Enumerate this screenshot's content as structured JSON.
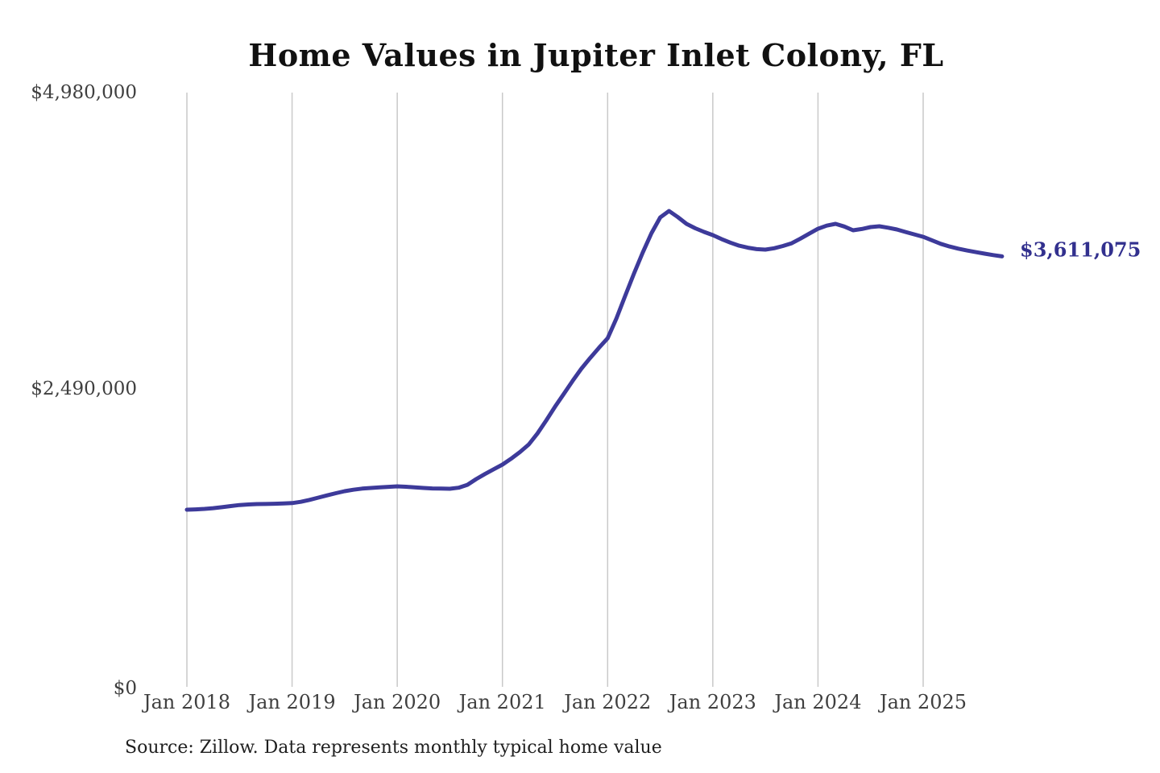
{
  "title": "Home Values in Jupiter Inlet Colony, FL",
  "end_value_label": "$3,611,075",
  "source_note": "Source: Zillow. Data represents monthly typical home value",
  "y_axis": {
    "ticks": [
      "$4,980,000",
      "$2,490,000",
      "$0"
    ]
  },
  "x_axis": {
    "ticks": [
      "Jan 2018",
      "Jan 2019",
      "Jan 2020",
      "Jan 2021",
      "Jan 2022",
      "Jan 2023",
      "Jan 2024",
      "Jan 2025"
    ]
  },
  "colors": {
    "line": "#3d3a9a",
    "end_label": "#32308e",
    "gridline": "#c9c9c9",
    "axis_text": "#3f3f3f",
    "title_text": "#111111",
    "source_text": "#1f1f1f",
    "background": "#ffffff"
  },
  "chart_data": {
    "type": "line",
    "title": "Home Values in Jupiter Inlet Colony, FL",
    "series_name": "Monthly typical home value",
    "unit": "USD",
    "frequency": "monthly",
    "start_month": "2018-01",
    "end_month": "2025-10",
    "ylim": [
      0,
      4980000
    ],
    "y_tick_values": [
      0,
      2490000,
      4980000
    ],
    "x_tick_labels": [
      "Jan 2018",
      "Jan 2019",
      "Jan 2020",
      "Jan 2021",
      "Jan 2022",
      "Jan 2023",
      "Jan 2024",
      "Jan 2025"
    ],
    "grid": "vertical year gridlines only",
    "legend": "none",
    "end_label": "$3,611,075",
    "values": [
      1494000,
      1497000,
      1501000,
      1507000,
      1515000,
      1524000,
      1533000,
      1538000,
      1541000,
      1542000,
      1544000,
      1546000,
      1549000,
      1560000,
      1576000,
      1595000,
      1614000,
      1632000,
      1649000,
      1661000,
      1670000,
      1676000,
      1681000,
      1685000,
      1689000,
      1686000,
      1681000,
      1676000,
      1672000,
      1670000,
      1669000,
      1678000,
      1702000,
      1750000,
      1792000,
      1832000,
      1871000,
      1921000,
      1976000,
      2039000,
      2131000,
      2240000,
      2355000,
      2462000,
      2570000,
      2672000,
      2761000,
      2846000,
      2927000,
      3092000,
      3280000,
      3466000,
      3642000,
      3805000,
      3937000,
      3991000,
      3940000,
      3883000,
      3846000,
      3816000,
      3789000,
      3756000,
      3726000,
      3701000,
      3684000,
      3672000,
      3668000,
      3679000,
      3698000,
      3721000,
      3760000,
      3801000,
      3842000,
      3868000,
      3883000,
      3861000,
      3829000,
      3840000,
      3856000,
      3863000,
      3851000,
      3836000,
      3815000,
      3795000,
      3775000,
      3746000,
      3716000,
      3694000,
      3676000,
      3660000,
      3647000,
      3634000,
      3622000,
      3611075
    ]
  }
}
